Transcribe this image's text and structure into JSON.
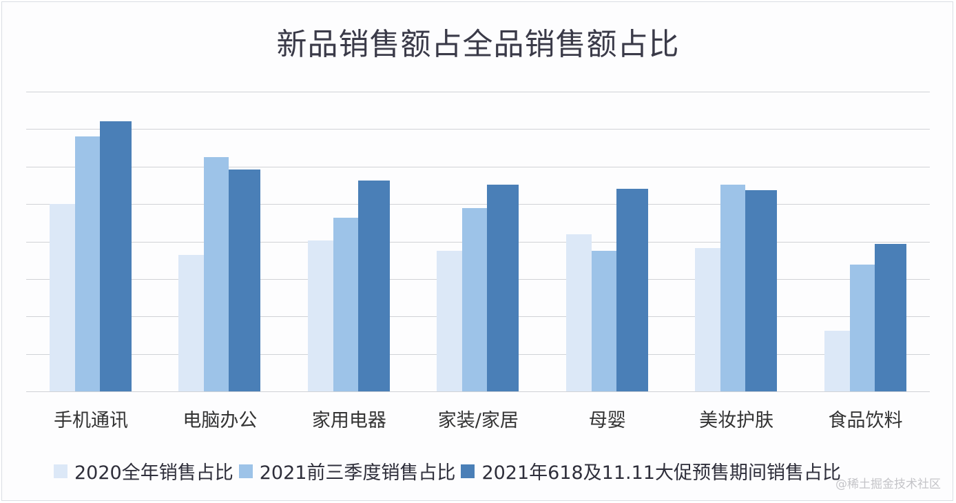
{
  "chart_data": {
    "type": "bar",
    "title": "新品销售额占全品销售额占比",
    "xlabel": "",
    "ylabel": "",
    "ylim": [
      0,
      8
    ],
    "grid": true,
    "gridlines": 8,
    "y_tick_labels_visible": false,
    "legend_position": "bottom",
    "categories": [
      "手机通讯",
      "电脑办公",
      "家用电器",
      "家装/家居",
      "母婴",
      "美妆护肤",
      "食品饮料"
    ],
    "series": [
      {
        "name": "2020全年销售占比",
        "color": "#dce8f7",
        "values": [
          5.0,
          3.65,
          4.03,
          3.75,
          4.19,
          3.82,
          1.62
        ]
      },
      {
        "name": "2021前三季度销售占比",
        "color": "#9dc3e8",
        "values": [
          6.8,
          6.25,
          4.63,
          4.89,
          3.75,
          5.51,
          3.38
        ]
      },
      {
        "name": "2021年618及11.11大促预售期间销售占比",
        "color": "#4a7fb7",
        "values": [
          7.21,
          5.92,
          5.62,
          5.51,
          5.4,
          5.37,
          3.93
        ]
      }
    ],
    "note": "Values are estimated in gridline units (no y-axis labels are shown)."
  },
  "watermark": "@稀土掘金技术社区"
}
